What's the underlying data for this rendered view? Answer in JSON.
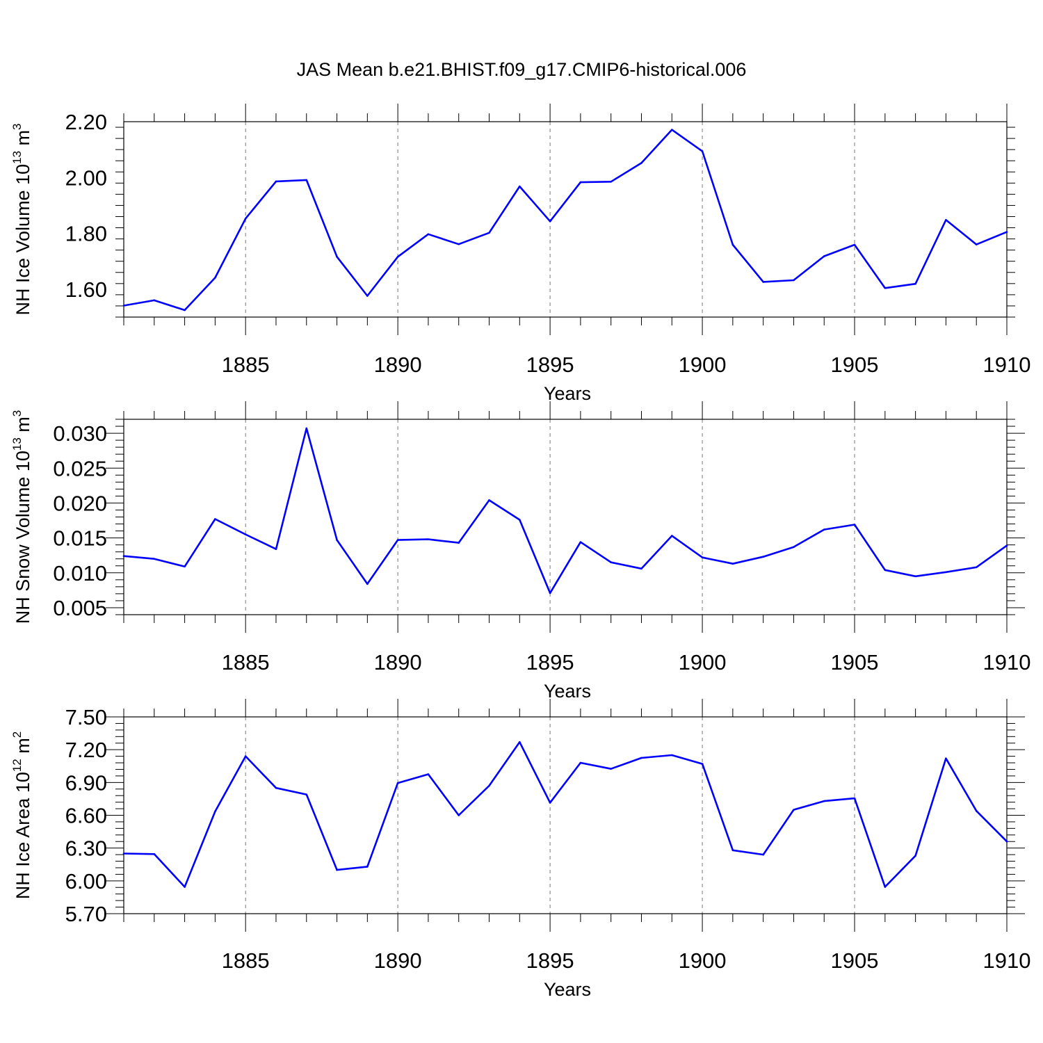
{
  "title": "JAS Mean b.e21.BHIST.f09_g17.CMIP6-historical.006",
  "line_color": "#0000ff",
  "chart_data": [
    {
      "type": "line",
      "xlabel": "Years",
      "ylabel": "NH Ice Volume 10",
      "ylabel_exp": "13",
      "ylabel_unit": " m",
      "ylabel_unit_exp": "3",
      "xlim": [
        1881,
        1910
      ],
      "ylim": [
        1.5,
        2.2
      ],
      "xticks": [
        1885,
        1890,
        1895,
        1900,
        1905,
        1910
      ],
      "yticks": [
        1.6,
        1.8,
        2.0,
        2.2
      ],
      "yticklabels": [
        "1.60",
        "1.80",
        "2.00",
        "2.20"
      ],
      "grid": "vertical dashed",
      "series": [
        {
          "x": [
            1881,
            1882,
            1883,
            1884,
            1885,
            1886,
            1887,
            1888,
            1889,
            1890,
            1891,
            1892,
            1893,
            1894,
            1895,
            1896,
            1897,
            1898,
            1899,
            1900,
            1901,
            1902,
            1903,
            1904,
            1905,
            1906,
            1907,
            1908,
            1909,
            1910
          ],
          "values": [
            1.541,
            1.56,
            1.525,
            1.641,
            1.853,
            1.986,
            1.991,
            1.716,
            1.576,
            1.716,
            1.797,
            1.761,
            1.802,
            1.968,
            1.843,
            1.983,
            1.985,
            2.052,
            2.171,
            2.094,
            1.759,
            1.626,
            1.632,
            1.718,
            1.759,
            1.604,
            1.619,
            1.848,
            1.76,
            1.805
          ]
        }
      ]
    },
    {
      "type": "line",
      "xlabel": "Years",
      "ylabel": "NH Snow Volume 10",
      "ylabel_exp": "13",
      "ylabel_unit": " m",
      "ylabel_unit_exp": "3",
      "xlim": [
        1881,
        1910
      ],
      "ylim": [
        0.004,
        0.032
      ],
      "xticks": [
        1885,
        1890,
        1895,
        1900,
        1905,
        1910
      ],
      "yticks": [
        0.005,
        0.01,
        0.015,
        0.02,
        0.025,
        0.03
      ],
      "yticklabels": [
        "0.005",
        "0.010",
        "0.015",
        "0.020",
        "0.025",
        "0.030"
      ],
      "grid": "vertical dashed",
      "series": [
        {
          "x": [
            1881,
            1882,
            1883,
            1884,
            1885,
            1886,
            1887,
            1888,
            1889,
            1890,
            1891,
            1892,
            1893,
            1894,
            1895,
            1896,
            1897,
            1898,
            1899,
            1900,
            1901,
            1902,
            1903,
            1904,
            1905,
            1906,
            1907,
            1908,
            1909,
            1910
          ],
          "values": [
            0.0124,
            0.012,
            0.0109,
            0.0177,
            0.0155,
            0.0134,
            0.0307,
            0.0147,
            0.0084,
            0.0147,
            0.0148,
            0.0143,
            0.0204,
            0.0176,
            0.0071,
            0.0144,
            0.0115,
            0.0106,
            0.0153,
            0.0122,
            0.0113,
            0.0123,
            0.0137,
            0.0162,
            0.0169,
            0.0104,
            0.0095,
            0.0101,
            0.0108,
            0.0139
          ]
        }
      ]
    },
    {
      "type": "line",
      "xlabel": "Years",
      "ylabel": "NH Ice Area 10",
      "ylabel_exp": "12",
      "ylabel_unit": " m",
      "ylabel_unit_exp": "2",
      "xlim": [
        1881,
        1910
      ],
      "ylim": [
        5.7,
        7.5
      ],
      "xticks": [
        1885,
        1890,
        1895,
        1900,
        1905,
        1910
      ],
      "yticks": [
        5.7,
        6.0,
        6.3,
        6.6,
        6.9,
        7.2,
        7.5
      ],
      "yticklabels": [
        "5.70",
        "6.00",
        "6.30",
        "6.60",
        "6.90",
        "7.20",
        "7.50"
      ],
      "grid": "vertical dashed",
      "series": [
        {
          "x": [
            1881,
            1882,
            1883,
            1884,
            1885,
            1886,
            1887,
            1888,
            1889,
            1890,
            1891,
            1892,
            1893,
            1894,
            1895,
            1896,
            1897,
            1898,
            1899,
            1900,
            1901,
            1902,
            1903,
            1904,
            1905,
            1906,
            1907,
            1908,
            1909,
            1910
          ],
          "values": [
            6.25,
            6.245,
            5.945,
            6.635,
            7.14,
            6.85,
            6.79,
            6.1,
            6.13,
            6.895,
            6.975,
            6.6,
            6.87,
            7.27,
            6.715,
            7.08,
            7.025,
            7.125,
            7.15,
            7.07,
            6.28,
            6.24,
            6.65,
            6.73,
            6.755,
            5.945,
            6.23,
            7.12,
            6.64,
            6.36
          ]
        }
      ]
    }
  ]
}
